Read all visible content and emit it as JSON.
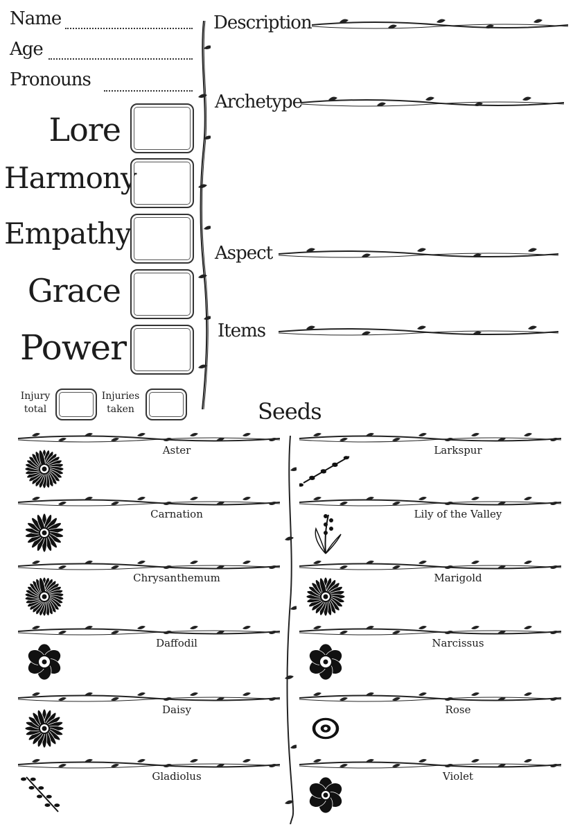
{
  "identity": {
    "name_label": "Name",
    "age_label": "Age",
    "pronouns_label": "Pronouns"
  },
  "stats": [
    {
      "label": "Lore"
    },
    {
      "label": "Harmony"
    },
    {
      "label": "Empathy"
    },
    {
      "label": "Grace"
    },
    {
      "label": "Power"
    }
  ],
  "injury": {
    "total_label": "Injury total",
    "taken_label": "Injuries taken"
  },
  "fields": {
    "description_label": "Description",
    "archetype_label": "Archetype",
    "aspect_label": "Aspect",
    "items_label": "Items"
  },
  "seeds": {
    "title": "Seeds",
    "left": [
      {
        "name": "Aster",
        "icon": "aster-flower-icon"
      },
      {
        "name": "Carnation",
        "icon": "carnation-flower-icon"
      },
      {
        "name": "Chrysanthemum",
        "icon": "chrysanthemum-flower-icon"
      },
      {
        "name": "Daffodil",
        "icon": "daffodil-flower-icon"
      },
      {
        "name": "Daisy",
        "icon": "daisy-flower-icon"
      },
      {
        "name": "Gladiolus",
        "icon": "gladiolus-flower-icon"
      }
    ],
    "right": [
      {
        "name": "Larkspur",
        "icon": "larkspur-flower-icon"
      },
      {
        "name": "Lily of the Valley",
        "icon": "lily-of-the-valley-flower-icon"
      },
      {
        "name": "Marigold",
        "icon": "marigold-flower-icon"
      },
      {
        "name": "Narcissus",
        "icon": "narcissus-flower-icon"
      },
      {
        "name": "Rose",
        "icon": "rose-flower-icon"
      },
      {
        "name": "Violet",
        "icon": "violet-flower-icon"
      }
    ]
  },
  "colors": {
    "ink": "#1c1c1c",
    "paper": "#ffffff"
  }
}
